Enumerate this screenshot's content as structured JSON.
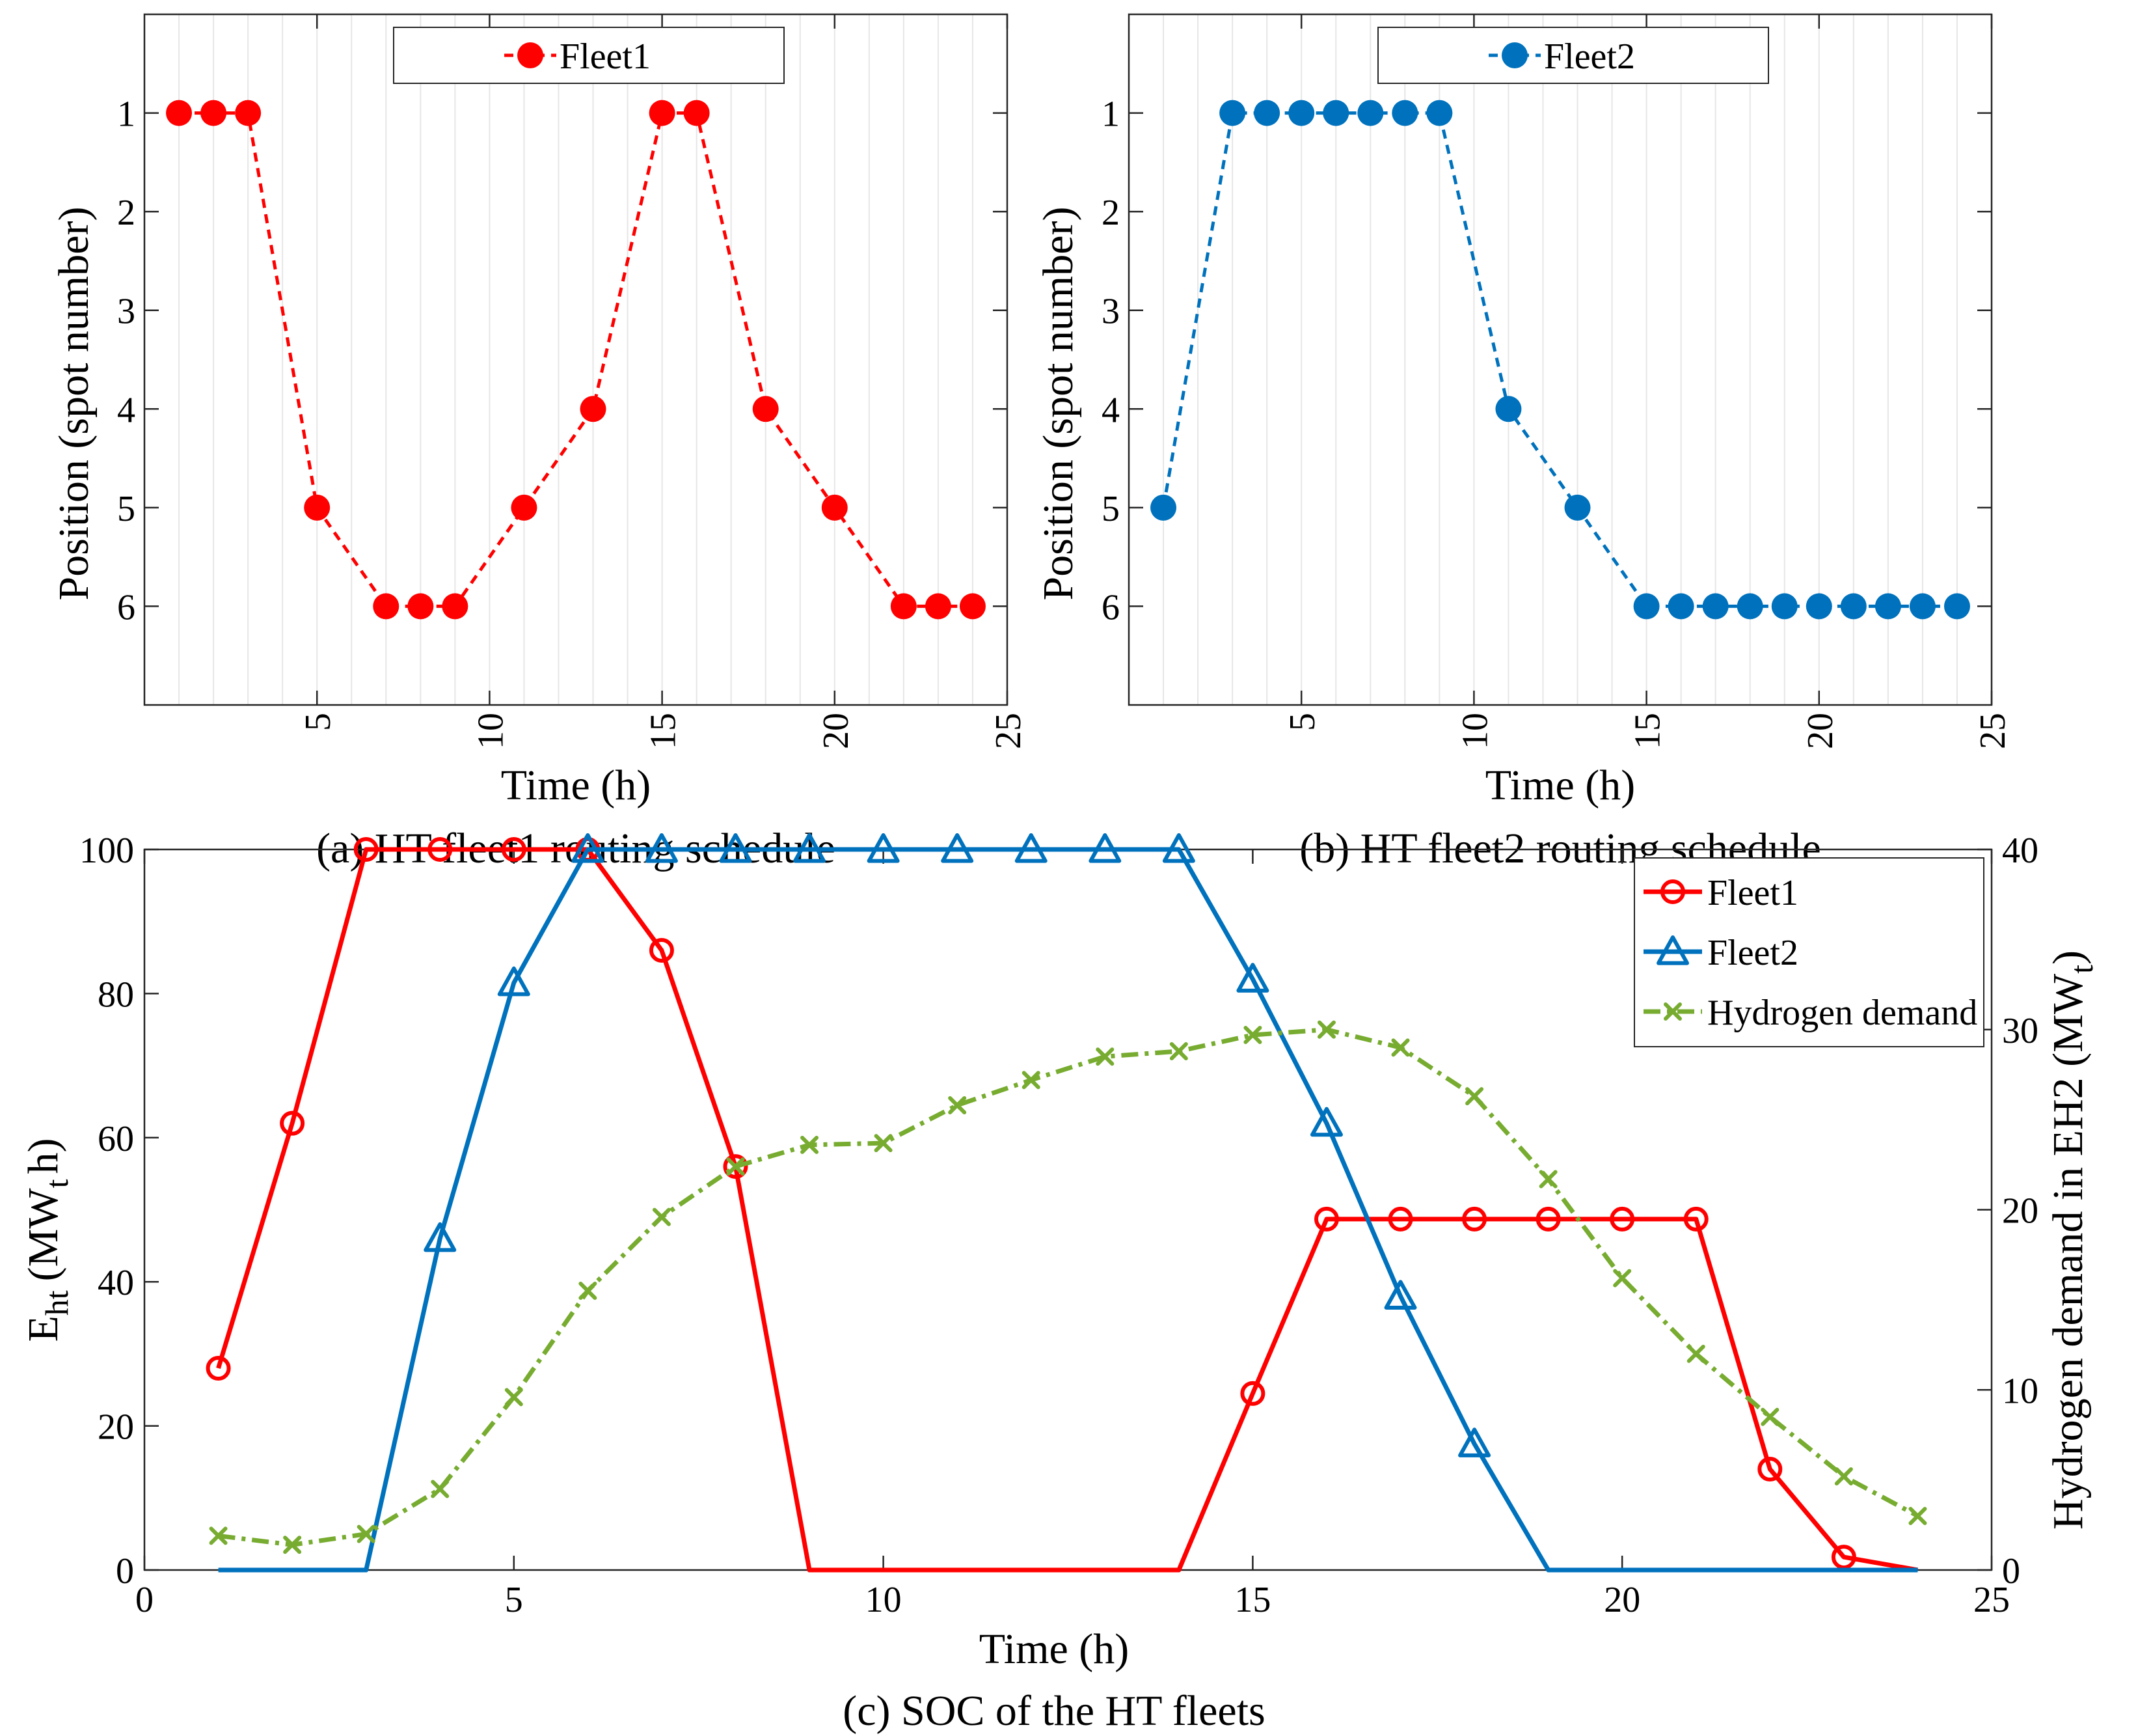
{
  "colors": {
    "fleet1": "#ff0000",
    "fleet2": "#0072bd",
    "hydrogen": "#77ac30",
    "grid": "#e6e6e6",
    "axis": "#262626"
  },
  "chart_data": [
    {
      "type": "line",
      "caption": "(a) HT fleet1 routing schedule",
      "xlabel": "Time (h)",
      "ylabel": "Position (spot number)",
      "xlim": [
        0,
        25
      ],
      "ylim": [
        0,
        7
      ],
      "y_reversed": true,
      "xticks": [
        5,
        10,
        15,
        20,
        25
      ],
      "yticks": [
        1,
        2,
        3,
        4,
        5,
        6
      ],
      "vertical_grid": true,
      "legend_position": "top",
      "series": [
        {
          "name": "Fleet1",
          "color": "#ff0000",
          "style": "dashed",
          "marker": "filled-circle",
          "x": [
            1,
            2,
            3,
            5,
            7,
            8,
            9,
            11,
            13,
            15,
            16,
            18,
            20,
            22,
            23,
            24
          ],
          "y": [
            1,
            1,
            1,
            5,
            6,
            6,
            6,
            5,
            4,
            1,
            1,
            4,
            5,
            6,
            6,
            6
          ]
        }
      ]
    },
    {
      "type": "line",
      "caption": "(b) HT fleet2 routing schedule",
      "xlabel": "Time (h)",
      "ylabel": "Position (spot number)",
      "xlim": [
        0,
        25
      ],
      "ylim": [
        0,
        7
      ],
      "y_reversed": true,
      "xticks": [
        5,
        10,
        15,
        20,
        25
      ],
      "yticks": [
        1,
        2,
        3,
        4,
        5,
        6
      ],
      "vertical_grid": true,
      "legend_position": "top",
      "series": [
        {
          "name": "Fleet2",
          "color": "#0072bd",
          "style": "dashed",
          "marker": "filled-circle",
          "x": [
            1,
            3,
            4,
            5,
            6,
            7,
            8,
            9,
            11,
            13,
            15,
            16,
            17,
            18,
            19,
            20,
            21,
            22,
            23,
            24
          ],
          "y": [
            5,
            1,
            1,
            1,
            1,
            1,
            1,
            1,
            4,
            5,
            6,
            6,
            6,
            6,
            6,
            6,
            6,
            6,
            6,
            6
          ]
        }
      ]
    },
    {
      "type": "line",
      "caption": "(c) SOC of the HT fleets",
      "xlabel": "Time (h)",
      "ylabel_main": "E",
      "ylabel_sub": "ht",
      "ylabel_unit": "(MW",
      "ylabel_unit_sub": "t",
      "ylabel_unit_end": "h)",
      "ylabel_right": "Hydrogen demand in EH2 (MW",
      "ylabel_right_sub": "t",
      "ylabel_right_end": ")",
      "xlim": [
        0,
        25
      ],
      "ylim": [
        0,
        100
      ],
      "ylim_right": [
        0,
        40
      ],
      "xticks": [
        0,
        5,
        10,
        15,
        20,
        25
      ],
      "yticks": [
        0,
        20,
        40,
        60,
        80,
        100
      ],
      "yticks_right": [
        0,
        10,
        20,
        30,
        40
      ],
      "legend_position": "top-right",
      "series": [
        {
          "name": "Fleet1",
          "color": "#ff0000",
          "style": "solid",
          "marker": "open-circle",
          "axis": "left",
          "x": [
            1,
            2,
            3,
            4,
            5,
            6,
            7,
            8,
            9,
            10,
            11,
            12,
            13,
            14,
            15,
            16,
            17,
            18,
            19,
            20,
            21,
            22,
            23,
            24
          ],
          "y": [
            28,
            62,
            100,
            100,
            100,
            100,
            86,
            56,
            0,
            0,
            0,
            0,
            0,
            0,
            24.5,
            48.7,
            48.7,
            48.7,
            48.7,
            48.7,
            48.7,
            14,
            1.8,
            0
          ],
          "marker_idx": [
            0,
            1,
            2,
            3,
            4,
            5,
            6,
            7,
            14,
            15,
            16,
            17,
            18,
            19,
            20,
            21,
            22
          ]
        },
        {
          "name": "Fleet2",
          "color": "#0072bd",
          "style": "solid",
          "marker": "open-triangle",
          "axis": "left",
          "x": [
            1,
            2,
            3,
            4,
            5,
            6,
            7,
            8,
            9,
            10,
            11,
            12,
            13,
            14,
            15,
            16,
            17,
            18,
            19,
            20,
            21,
            22,
            23,
            24
          ],
          "y": [
            0,
            0,
            0,
            46,
            81.5,
            100,
            100,
            100,
            100,
            100,
            100,
            100,
            100,
            100,
            82,
            62,
            38,
            17.5,
            0,
            0,
            0,
            0,
            0,
            0
          ],
          "marker_idx": [
            3,
            4,
            5,
            6,
            7,
            8,
            9,
            10,
            11,
            12,
            13,
            14,
            15,
            16,
            17
          ]
        },
        {
          "name": "Hydrogen demand",
          "color": "#77ac30",
          "style": "dash-dot",
          "marker": "x",
          "axis": "right",
          "x": [
            1,
            2,
            3,
            4,
            5,
            6,
            7,
            8,
            9,
            10,
            11,
            12,
            13,
            14,
            15,
            16,
            17,
            18,
            19,
            20,
            21,
            22,
            23,
            24
          ],
          "y": [
            1.9,
            1.4,
            2,
            4.5,
            9.6,
            15.5,
            19.6,
            22.4,
            23.6,
            23.7,
            25.8,
            27.2,
            28.5,
            28.8,
            29.7,
            30,
            29,
            26.3,
            21.7,
            16.2,
            12,
            8.5,
            5.2,
            3
          ],
          "marker_idx": [
            0,
            1,
            2,
            3,
            4,
            5,
            6,
            7,
            8,
            9,
            10,
            11,
            12,
            13,
            14,
            15,
            16,
            17,
            18,
            19,
            20,
            21,
            22,
            23
          ]
        }
      ]
    }
  ]
}
